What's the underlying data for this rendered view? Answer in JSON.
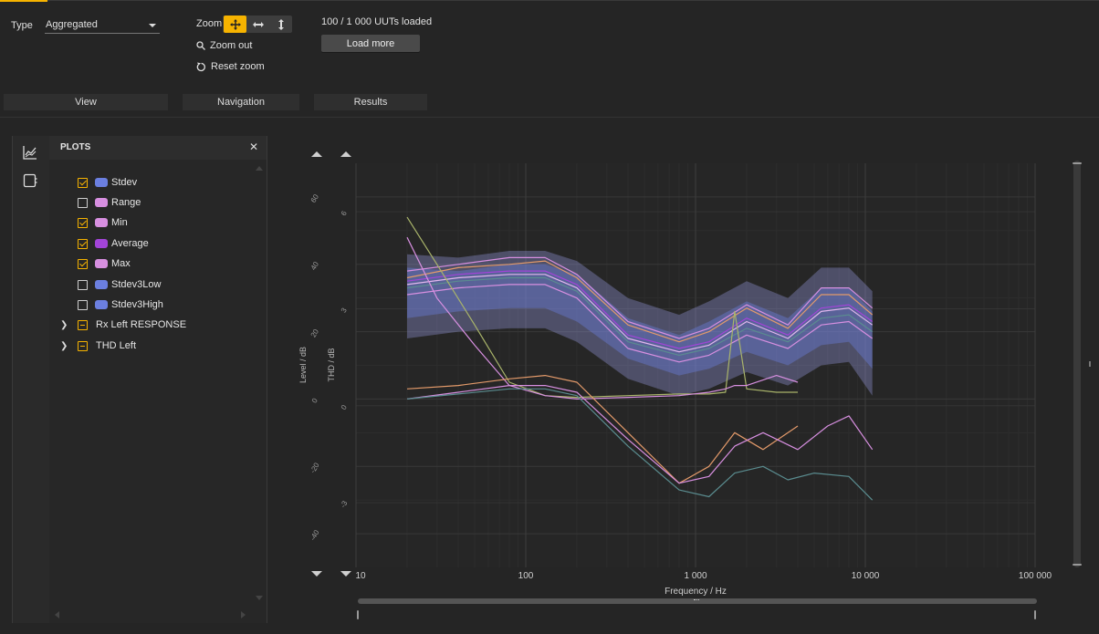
{
  "toolbar": {
    "type_label": "Type",
    "type_value": "Aggregated",
    "zoom_label": "Zoom",
    "zoom_out_label": "Zoom out",
    "reset_zoom_label": "Reset zoom",
    "loaded_status": "100 / 1 000 UUTs loaded",
    "load_more_label": "Load more",
    "groups": [
      "View",
      "Navigation",
      "Results"
    ]
  },
  "plots_panel": {
    "title": "PLOTS",
    "items": [
      {
        "label": "Stdev",
        "checked": true,
        "color": "#6b7fe0"
      },
      {
        "label": "Range",
        "checked": false,
        "color": "#d78fe0"
      },
      {
        "label": "Min",
        "checked": true,
        "color": "#d78fe0"
      },
      {
        "label": "Average",
        "checked": true,
        "color": "#a244d8"
      },
      {
        "label": "Max",
        "checked": true,
        "color": "#d78fe0"
      },
      {
        "label": "Stdev3Low",
        "checked": false,
        "color": "#6b7fe0"
      },
      {
        "label": "Stdev3High",
        "checked": false,
        "color": "#6b7fe0"
      }
    ],
    "groups": [
      {
        "label": "Rx Left RESPONSE"
      },
      {
        "label": "THD Left"
      }
    ]
  },
  "colors": {
    "accent": "#f6b300"
  },
  "chart_data": {
    "type": "line",
    "xlabel": "Frequency / Hz",
    "ylabel_left": "Level / dB",
    "ylabel_right": "THD / dB",
    "x_scale": "log",
    "xlim": [
      10,
      100000
    ],
    "x_ticks": [
      10,
      100,
      1000,
      10000,
      100000
    ],
    "x_tick_labels": [
      "10",
      "100",
      "1 000",
      "10 000",
      "100 000"
    ],
    "level_ylim": [
      -50,
      70
    ],
    "level_ticks": [
      60,
      40,
      20,
      0,
      -20,
      -40
    ],
    "thd_ylim": [
      -5,
      7.5
    ],
    "thd_ticks": [
      6,
      3,
      0,
      -3
    ],
    "series": [
      {
        "group": "Rx Left RESPONSE",
        "axis": "level",
        "color": "#9b9fe6",
        "opacity": 0.35,
        "band": true,
        "x": [
          20,
          40,
          80,
          130,
          200,
          400,
          800,
          1200,
          2000,
          3500,
          5500,
          8000,
          11000
        ],
        "y_low": [
          18,
          20,
          21,
          21,
          17,
          6,
          1,
          3,
          8,
          4,
          10,
          11,
          1
        ],
        "y_high": [
          43,
          42,
          44,
          44,
          41,
          30,
          25,
          29,
          35,
          30,
          39,
          39,
          32
        ]
      },
      {
        "group": "Rx Left RESPONSE",
        "axis": "level",
        "color": "#6b7fe0",
        "opacity": 0.4,
        "band": true,
        "x": [
          20,
          40,
          80,
          130,
          200,
          400,
          800,
          1200,
          2000,
          3500,
          5500,
          8000,
          11000
        ],
        "y_low": [
          24,
          26,
          27,
          27,
          23,
          12,
          7,
          9,
          14,
          10,
          16,
          17,
          9
        ],
        "y_high": [
          39,
          38,
          40,
          40,
          37,
          24,
          19,
          23,
          29,
          24,
          33,
          33,
          26
        ]
      },
      {
        "group": "Rx Left RESPONSE",
        "axis": "level",
        "name": "Max",
        "color": "#d78fe0",
        "x": [
          20,
          40,
          80,
          130,
          200,
          400,
          800,
          1200,
          2000,
          3500,
          5500,
          8000,
          11000
        ],
        "y": [
          38,
          40,
          42,
          42,
          37,
          23,
          18,
          21,
          28,
          22,
          33,
          33,
          27
        ]
      },
      {
        "group": "Rx Left RESPONSE",
        "axis": "level",
        "color": "#e39a6a",
        "x": [
          20,
          40,
          80,
          130,
          200,
          400,
          800,
          1200,
          2000,
          3500,
          5500,
          8000,
          11000
        ],
        "y": [
          36,
          39,
          40,
          41,
          36,
          22,
          17,
          20,
          27,
          21,
          31,
          31,
          25
        ]
      },
      {
        "group": "Rx Left RESPONSE",
        "axis": "level",
        "name": "Average",
        "color": "#a244d8",
        "x": [
          20,
          40,
          80,
          130,
          200,
          400,
          800,
          1200,
          2000,
          3500,
          5500,
          8000,
          11000
        ],
        "y": [
          35,
          37,
          38,
          38,
          34,
          19,
          15,
          17,
          24,
          19,
          27,
          28,
          23
        ]
      },
      {
        "group": "Rx Left RESPONSE",
        "axis": "level",
        "color": "#e2b6ee",
        "x": [
          20,
          40,
          80,
          130,
          200,
          400,
          800,
          1200,
          2000,
          3500,
          5500,
          8000,
          11000
        ],
        "y": [
          34,
          36,
          37,
          37,
          33,
          18,
          14,
          16,
          23,
          18,
          26,
          27,
          22
        ]
      },
      {
        "group": "Rx Left RESPONSE",
        "axis": "level",
        "color": "#5a8c8f",
        "x": [
          20,
          40,
          80,
          130,
          200,
          400,
          800,
          1200,
          2000,
          3500,
          5500,
          8000,
          11000
        ],
        "y": [
          33,
          35,
          36,
          36,
          32,
          17,
          13,
          15,
          21,
          17,
          24,
          25,
          20
        ]
      },
      {
        "group": "Rx Left RESPONSE",
        "axis": "level",
        "name": "Min",
        "color": "#d78fe0",
        "x": [
          20,
          40,
          80,
          130,
          200,
          400,
          800,
          1200,
          2000,
          3500,
          5500,
          8000,
          11000
        ],
        "y": [
          31,
          33,
          34,
          34,
          30,
          15,
          11,
          13,
          19,
          15,
          22,
          23,
          18
        ]
      },
      {
        "group": "THD Left",
        "axis": "level",
        "color": "#a9b46a",
        "x": [
          20,
          30,
          50,
          80,
          130,
          200,
          400,
          800,
          1200,
          1500,
          1700,
          2000,
          3000,
          4000
        ],
        "y": [
          54,
          40,
          22,
          5,
          1,
          0.5,
          1,
          1.5,
          1.5,
          2,
          26,
          3,
          2,
          2
        ]
      },
      {
        "group": "THD Left",
        "axis": "level",
        "color": "#d78fe0",
        "x": [
          20,
          30,
          50,
          80,
          130,
          200,
          400,
          800,
          1200,
          1500,
          1700,
          2000,
          3000,
          4000
        ],
        "y": [
          48,
          30,
          16,
          4,
          1,
          0,
          0.5,
          1,
          2,
          3,
          4,
          4,
          7,
          5
        ]
      },
      {
        "group": "THD Left",
        "axis": "level",
        "color": "#e39a6a",
        "x": [
          20,
          40,
          80,
          130,
          200,
          400,
          800,
          1200,
          1700,
          2500,
          4000
        ],
        "y": [
          3,
          4,
          6,
          7,
          5,
          -10,
          -25,
          -20,
          -10,
          -15,
          -8
        ]
      },
      {
        "group": "THD Left",
        "axis": "level",
        "color": "#d78fe0",
        "x": [
          20,
          40,
          80,
          130,
          200,
          400,
          800,
          1200,
          1700,
          2500,
          4000,
          6000,
          8000,
          11000
        ],
        "y": [
          0,
          2,
          4,
          4,
          2,
          -12,
          -25,
          -23,
          -14,
          -10,
          -15,
          -8,
          -5,
          -15
        ]
      },
      {
        "group": "THD Left",
        "axis": "level",
        "color": "#5a8c8f",
        "x": [
          20,
          40,
          80,
          130,
          200,
          400,
          800,
          1200,
          1700,
          2500,
          3500,
          5000,
          8000,
          11000
        ],
        "y": [
          0,
          1.5,
          3,
          3,
          1,
          -14,
          -27,
          -29,
          -22,
          -20,
          -24,
          -22,
          -23,
          -30
        ]
      }
    ]
  }
}
